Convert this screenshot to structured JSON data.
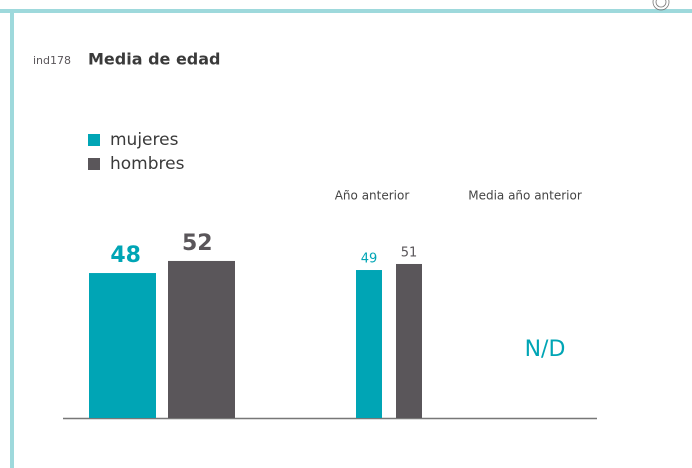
{
  "chart_data": {
    "type": "bar",
    "code": "ind178",
    "title": "Media de edad",
    "categories": [
      null,
      "Año anterior",
      "Media año anterior"
    ],
    "series": [
      {
        "name": "mujeres",
        "color": "#00a5b5",
        "values": [
          48,
          49,
          null
        ]
      },
      {
        "name": "hombres",
        "color": "#5a565a",
        "values": [
          52,
          51,
          null
        ]
      }
    ],
    "missing_label": "N/D"
  }
}
